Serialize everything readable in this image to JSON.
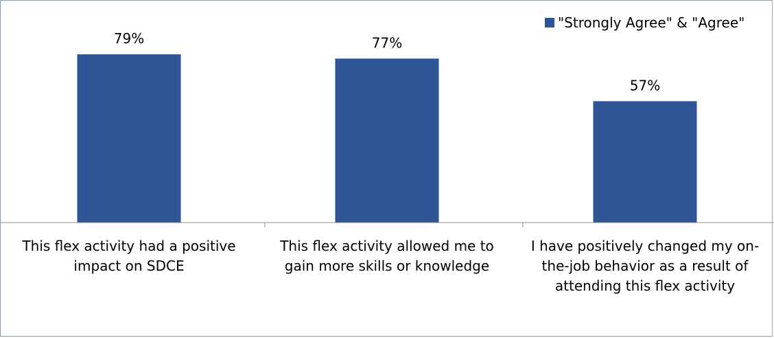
{
  "chart_data": {
    "type": "bar",
    "categories": [
      "This flex activity had a positive impact on SDCE",
      "This flex activity allowed me to gain more skills or knowledge",
      "I have positively changed my on-the-job behavior as a result of attending this flex activity"
    ],
    "category_lines": [
      [
        "This flex activity had a positive",
        "impact on SDCE"
      ],
      [
        "This flex activity allowed me to",
        "gain more skills or knowledge"
      ],
      [
        "I have positively changed my on-",
        "the-job behavior as a result of",
        "attending this flex activity"
      ]
    ],
    "series": [
      {
        "name": "\"Strongly Agree\" & \"Agree\"",
        "values": [
          79,
          77,
          57
        ],
        "labels": [
          "79%",
          "77%",
          "57%"
        ],
        "color": "#2f5597"
      }
    ],
    "ylim": [
      0,
      100
    ],
    "legend_position": "top-right",
    "grid": false
  }
}
